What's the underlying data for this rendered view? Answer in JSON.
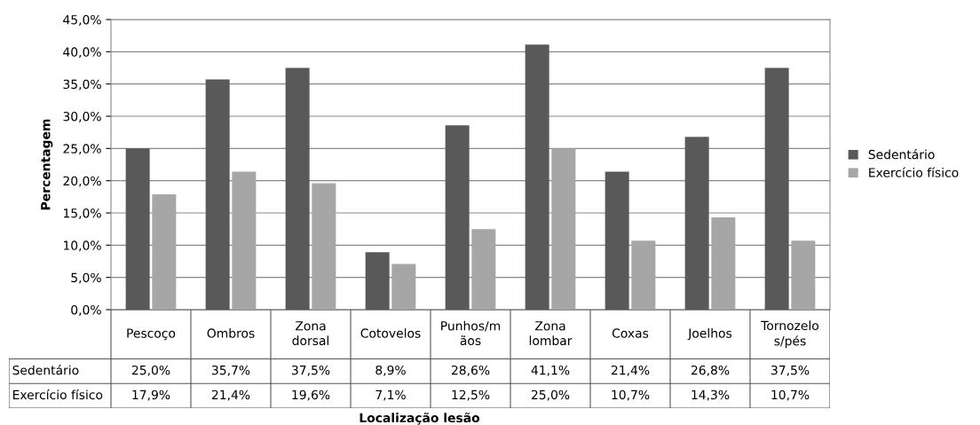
{
  "chart_data": {
    "type": "bar",
    "ylabel": "Percentagem",
    "annotations": [
      "Localização lesão"
    ],
    "categories": [
      "Pescoço",
      "Ombros",
      "Zona\ndorsal",
      "Cotovelos",
      "Punhos/m\nãos",
      "Zona\nlombar",
      "Coxas",
      "Joelhos",
      "Tornozelo\ns/pés"
    ],
    "series": [
      {
        "name": "Sedentário",
        "color": "#595959",
        "values": [
          25.0,
          35.7,
          37.5,
          8.9,
          28.6,
          41.1,
          21.4,
          26.8,
          37.5
        ],
        "value_labels": [
          "25,0%",
          "35,7%",
          "37,5%",
          "8,9%",
          "28,6%",
          "41,1%",
          "21,4%",
          "26,8%",
          "37,5%"
        ]
      },
      {
        "name": "Exercício físico",
        "color": "#a6a6a6",
        "values": [
          17.9,
          21.4,
          19.6,
          7.1,
          12.5,
          25.0,
          10.7,
          14.3,
          10.7
        ],
        "value_labels": [
          "17,9%",
          "21,4%",
          "19,6%",
          "7,1%",
          "12,5%",
          "25,0%",
          "10,7%",
          "14,3%",
          "10,7%"
        ]
      }
    ],
    "ylim": [
      0,
      45
    ],
    "yticks": [
      {
        "value": 0,
        "label": "0,0%"
      },
      {
        "value": 5,
        "label": "5,0%"
      },
      {
        "value": 10,
        "label": "10,0%"
      },
      {
        "value": 15,
        "label": "15,0%"
      },
      {
        "value": 20,
        "label": "20,0%"
      },
      {
        "value": 25,
        "label": "25,0%"
      },
      {
        "value": 30,
        "label": "30,0%"
      },
      {
        "value": 35,
        "label": "35,0%"
      },
      {
        "value": 40,
        "label": "40,0%"
      },
      {
        "value": 45,
        "label": "45,0%"
      }
    ],
    "grid": "y",
    "legend": "right"
  }
}
